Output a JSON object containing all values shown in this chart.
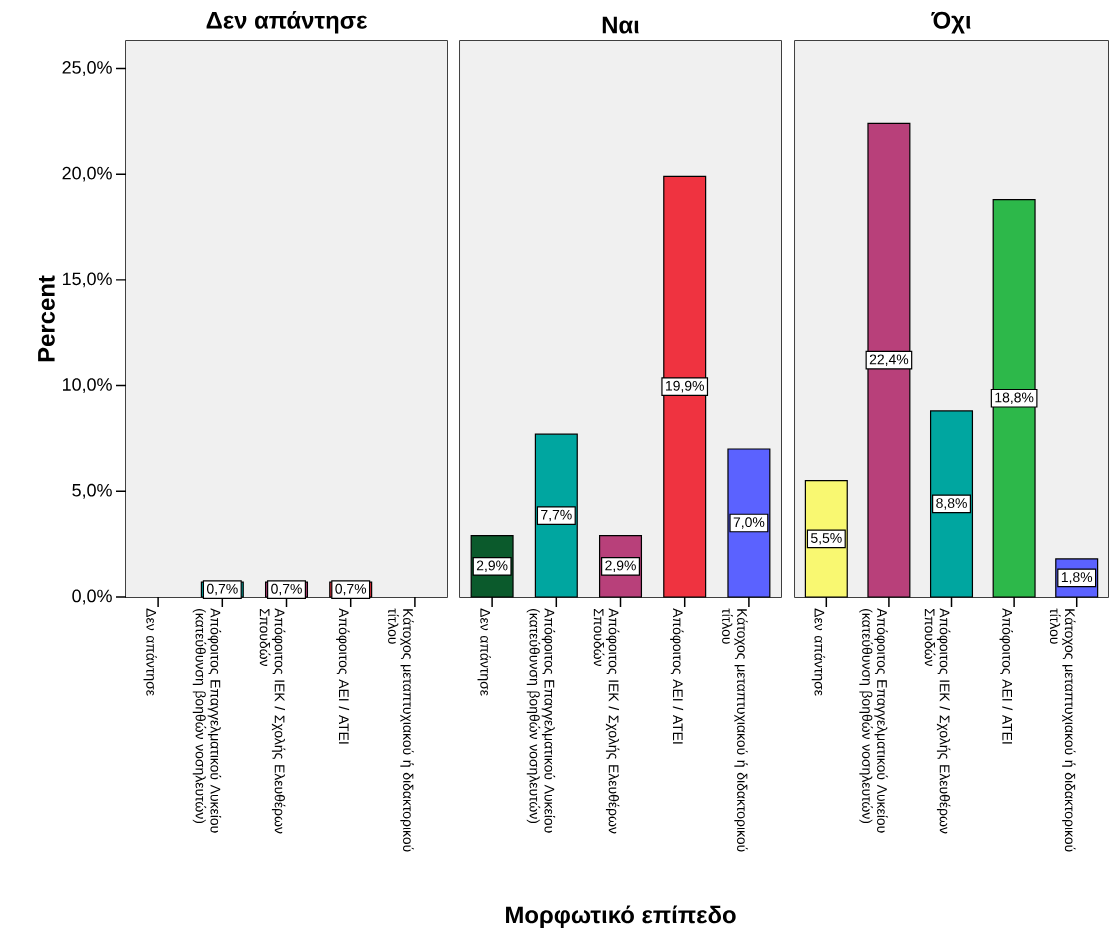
{
  "chart_data": [
    {
      "type": "bar",
      "title": "Δεν απάντησε",
      "ylabel": "Percent",
      "categories": [
        "Δεν απάντησε",
        "Απόφοιτος Επαγγελματικού Λυκείου (κατεύθυνση βοηθών νοσηλευτών)",
        "Απόφοιτος ΙΕΚ / Σχολής Ελευθέρων Σπουδών",
        "Απόφοιτος ΑΕΙ / ΑΤΕΙ",
        "Κάτοχος μεταπτυχιακού ή διδακτορικού τίτλου"
      ],
      "values": [
        null,
        0.7,
        0.7,
        0.7,
        null
      ],
      "colors": [
        "#0b5a2c",
        "#00a6a0",
        "#b8407a",
        "#ef3340",
        "#5b62ff"
      ],
      "value_labels": [
        null,
        "0,7%",
        "0,7%",
        "0,7%",
        null
      ],
      "ylim": [
        0,
        26.3
      ],
      "yticks": [
        {
          "value": 0,
          "label": "0,0%"
        },
        {
          "value": 5,
          "label": "5,0%"
        },
        {
          "value": 10,
          "label": "10,0%"
        },
        {
          "value": 15,
          "label": "15,0%"
        },
        {
          "value": 20,
          "label": "20,0%"
        },
        {
          "value": 25,
          "label": "25,0%"
        }
      ]
    },
    {
      "type": "bar",
      "title": "Ναι",
      "xlabel": "Μορφωτικό επίπεδο",
      "categories": [
        "Δεν απάντησε",
        "Απόφοιτος Επαγγελματικού Λυκείου (κατεύθυνση βοηθών νοσηλευτών)",
        "Απόφοιτος ΙΕΚ / Σχολής Ελευθέρων Σπουδών",
        "Απόφοιτος ΑΕΙ / ΑΤΕΙ",
        "Κάτοχος μεταπτυχιακού ή διδακτορικού τίτλου"
      ],
      "values": [
        2.9,
        7.7,
        2.9,
        19.9,
        7.0
      ],
      "colors": [
        "#0b5a2c",
        "#00a6a0",
        "#b8407a",
        "#ef3340",
        "#5b62ff"
      ],
      "value_labels": [
        "2,9%",
        "7,7%",
        "2,9%",
        "19,9%",
        "7,0%"
      ],
      "ylim": [
        0,
        26.3
      ],
      "tick_labels": "x"
    },
    {
      "type": "bar",
      "title": "Όχι",
      "categories": [
        "Δεν απάντησε",
        "Απόφοιτος Επαγγελματικού Λυκείου (κατεύθυνση βοηθών νοσηλευτών)",
        "Απόφοιτος ΙΕΚ / Σχολής Ελευθέρων Σπουδών",
        "Απόφοιτος ΑΕΙ / ΑΤΕΙ",
        "Κάτοχος μεταπτυχιακού ή διδακτορικού τίτλου"
      ],
      "values": [
        5.5,
        22.4,
        8.8,
        18.8,
        1.8
      ],
      "colors": [
        "#f9f871",
        "#b8407a",
        "#00a6a0",
        "#2db84a",
        "#5b62ff"
      ],
      "value_labels": [
        "5,5%",
        "22,4%",
        "8,8%",
        "18,8%",
        "1,8%"
      ],
      "ylim": [
        0,
        26.3
      ],
      "tick_labels": "x"
    }
  ]
}
